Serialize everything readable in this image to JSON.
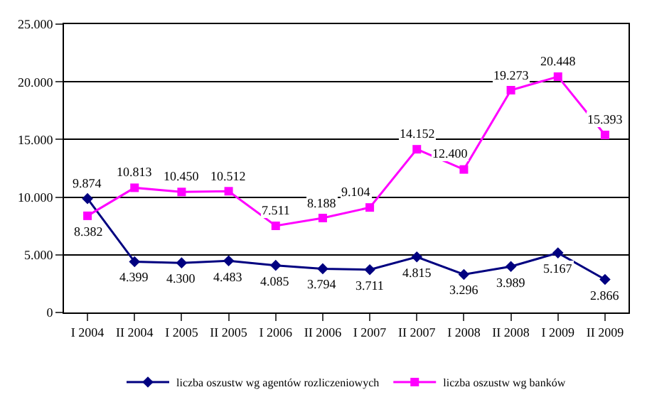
{
  "chart_data": {
    "type": "line",
    "categories": [
      "I 2004",
      "II 2004",
      "I 2005",
      "II 2005",
      "I 2006",
      "II 2006",
      "I 2007",
      "II 2007",
      "I 2008",
      "II 2008",
      "I 2009",
      "II 2009"
    ],
    "series": [
      {
        "name": "liczba oszustw wg agentów rozliczeniowych",
        "color": "#000080",
        "marker": "diamond",
        "values": [
          9874,
          4399,
          4300,
          4483,
          4085,
          3794,
          3711,
          4815,
          3296,
          3989,
          5167,
          2866
        ],
        "value_labels": [
          "9.874",
          "4.399",
          "4.300",
          "4.483",
          "4.085",
          "3.794",
          "3.711",
          "4.815",
          "3.296",
          "3.989",
          "5.167",
          "2.866"
        ]
      },
      {
        "name": "liczba oszustw wg banków",
        "color": "#ff00ff",
        "marker": "square",
        "values": [
          8382,
          10813,
          10450,
          10512,
          7511,
          8188,
          9104,
          14152,
          12400,
          19273,
          20448,
          15393
        ],
        "value_labels": [
          "8.382",
          "10.813",
          "10.450",
          "10.512",
          "7.511",
          "8.188",
          "9.104",
          "14.152",
          "12.400",
          "19.273",
          "20.448",
          "15.393"
        ]
      }
    ],
    "ylim": [
      0,
      25000
    ],
    "yticks": [
      {
        "value": 0,
        "label": "0"
      },
      {
        "value": 5000,
        "label": "5.000"
      },
      {
        "value": 10000,
        "label": "10.000"
      },
      {
        "value": 15000,
        "label": "15.000"
      },
      {
        "value": 20000,
        "label": "20.000"
      },
      {
        "value": 25000,
        "label": "25.000"
      }
    ],
    "grid": "y",
    "legend": "bottom"
  }
}
